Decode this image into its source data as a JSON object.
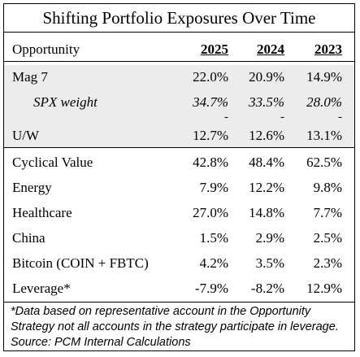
{
  "title": "Shifting Portfolio Exposures Over Time",
  "header": {
    "label": "Opportunity",
    "years": [
      "2025",
      "2024",
      "2023"
    ]
  },
  "rows": [
    {
      "label": "Mag 7",
      "values": [
        "22.0%",
        "20.9%",
        "14.9%"
      ]
    },
    {
      "label": "SPX weight",
      "values": [
        "34.7%",
        "33.5%",
        "28.0%"
      ]
    },
    {
      "label": "U/W",
      "values": [
        "12.7%",
        "12.6%",
        "13.1%"
      ]
    },
    {
      "label": "Cyclical Value",
      "values": [
        "42.8%",
        "48.4%",
        "62.5%"
      ]
    },
    {
      "label": "Energy",
      "values": [
        "7.9%",
        "12.2%",
        "9.8%"
      ]
    },
    {
      "label": "Healthcare",
      "values": [
        "27.0%",
        "14.8%",
        "7.7%"
      ]
    },
    {
      "label": "China",
      "values": [
        "1.5%",
        "2.9%",
        "2.5%"
      ]
    },
    {
      "label": "Bitcoin (COIN + FBTC)",
      "values": [
        "4.2%",
        "3.5%",
        "2.3%"
      ]
    },
    {
      "label": "Leverage*",
      "values": [
        "-7.9%",
        "-8.2%",
        "12.9%"
      ]
    }
  ],
  "dash_mark": "-",
  "footnote": "*Data based on representative account in the Opportunity Strategy not all accounts in the strategy participate in leverage. Source: PCM Internal Calculations"
}
